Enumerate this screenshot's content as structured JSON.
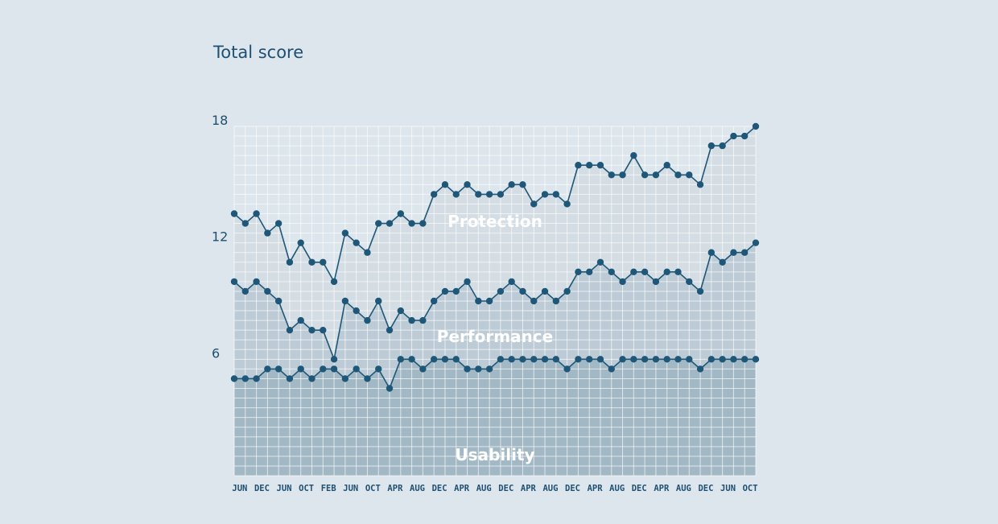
{
  "chart_data": {
    "type": "area",
    "title": "Total score",
    "ylim": [
      0,
      18
    ],
    "yticks": [
      6,
      12,
      18
    ],
    "x_tick_labels": [
      "JUN",
      "DEC",
      "JUN",
      "OCT",
      "FEB",
      "JUN",
      "OCT",
      "APR",
      "AUG",
      "DEC",
      "APR",
      "AUG",
      "DEC",
      "APR",
      "AUG",
      "DEC",
      "APR",
      "AUG",
      "DEC",
      "APR",
      "AUG",
      "DEC",
      "JUN",
      "OCT"
    ],
    "grid": true,
    "stacked": true,
    "series": [
      {
        "name": "Usability",
        "color": "#a3b8c5",
        "values": [
          5,
          5,
          5,
          5.5,
          5.5,
          5,
          5.5,
          5,
          5.5,
          5.5,
          5,
          5.5,
          5,
          5.5,
          4.5,
          6,
          6,
          5.5,
          6,
          6,
          6,
          5.5,
          5.5,
          5.5,
          6,
          6,
          6,
          6,
          6,
          6,
          5.5,
          6,
          6,
          6,
          5.5,
          6,
          6,
          6,
          6,
          6,
          6,
          6,
          5.5,
          6,
          6,
          6,
          6,
          6
        ]
      },
      {
        "name": "Performance",
        "color": "#bccbd5",
        "values": [
          10,
          9.5,
          10,
          9.5,
          9,
          7.5,
          8,
          7.5,
          7.5,
          6,
          9,
          8.5,
          8,
          9,
          7.5,
          8.5,
          8,
          8,
          9,
          9.5,
          9.5,
          10,
          9,
          9,
          9.5,
          10,
          9.5,
          9,
          9.5,
          9,
          9.5,
          10.5,
          10.5,
          11,
          10.5,
          10,
          10.5,
          10.5,
          10,
          10.5,
          10.5,
          10,
          9.5,
          11.5,
          11,
          11.5,
          11.5,
          12
        ]
      },
      {
        "name": "Protection",
        "color": "#d4dde3",
        "values": [
          13.5,
          13,
          13.5,
          12.5,
          13,
          11,
          12,
          11,
          11,
          10,
          12.5,
          12,
          11.5,
          13,
          13,
          13.5,
          13,
          13,
          14.5,
          15,
          14.5,
          15,
          14.5,
          14.5,
          14.5,
          15,
          15,
          14,
          14.5,
          14.5,
          14,
          16,
          16,
          16,
          15.5,
          15.5,
          16.5,
          15.5,
          15.5,
          16,
          15.5,
          15.5,
          15,
          17,
          17,
          17.5,
          17.5,
          18
        ]
      }
    ]
  },
  "colors": {
    "background": "#dde6ec",
    "line": "#1f5778",
    "text": "#1f4f72",
    "grid": "#ffffff"
  }
}
